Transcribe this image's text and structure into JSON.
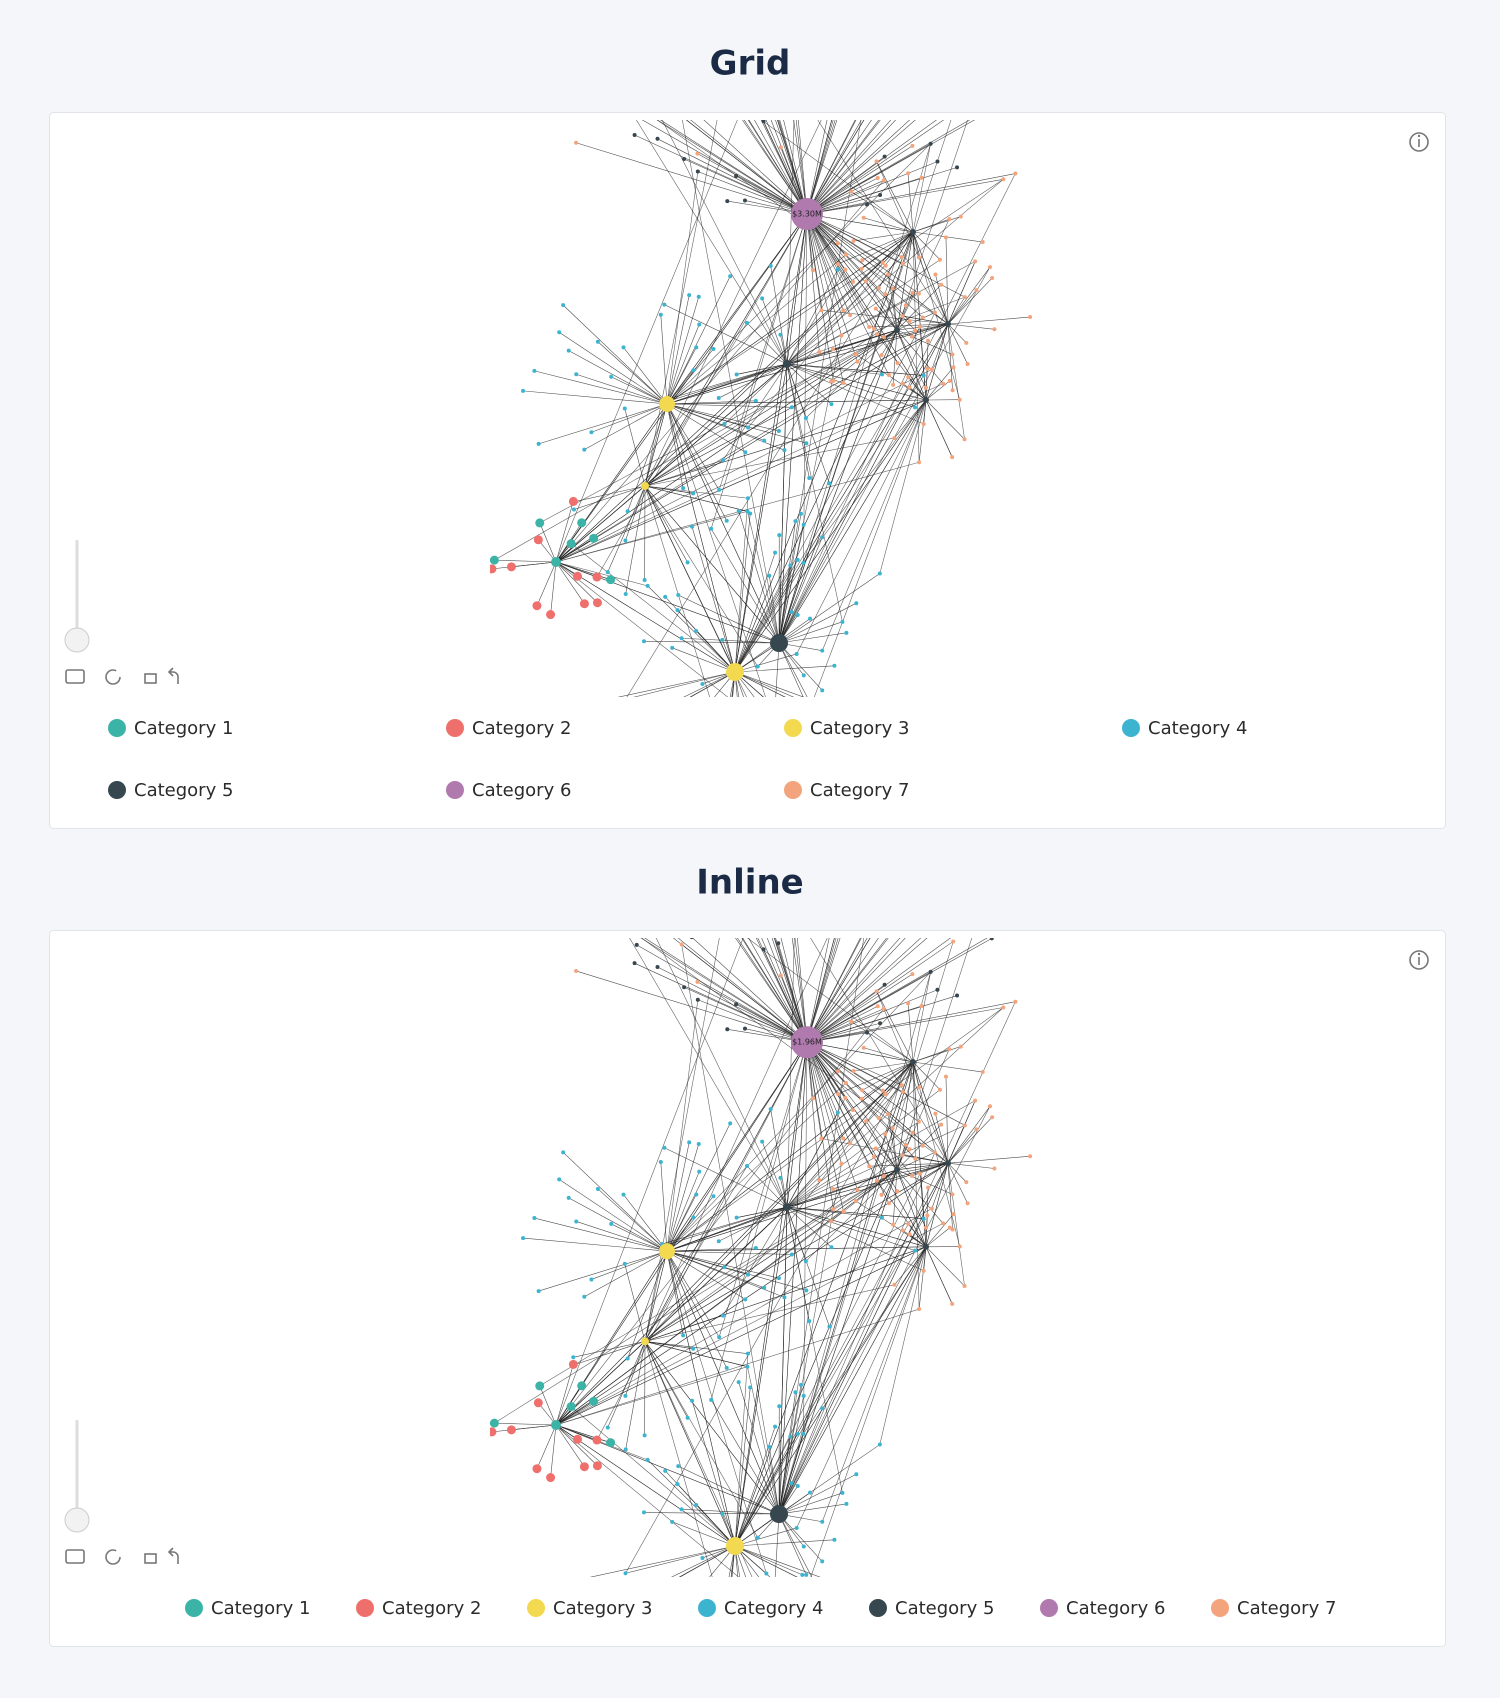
{
  "sections": [
    {
      "title": "Grid",
      "hub_label": "$3.30M",
      "legend_layout": "grid",
      "legend": [
        {
          "name": "Category 1",
          "color": "#3bb3a6"
        },
        {
          "name": "Category 2",
          "color": "#ef6f6c"
        },
        {
          "name": "Category 3",
          "color": "#f3d94f"
        },
        {
          "name": "Category 4",
          "color": "#3cb4d0"
        },
        {
          "name": "Category 5",
          "color": "#37474f"
        },
        {
          "name": "Category 6",
          "color": "#b07aaf"
        },
        {
          "name": "Category 7",
          "color": "#f4a47c"
        }
      ]
    },
    {
      "title": "Inline",
      "hub_label": "$1.96M",
      "legend_layout": "inline",
      "legend": [
        {
          "name": "Category 1",
          "color": "#3bb3a6"
        },
        {
          "name": "Category 2",
          "color": "#ef6f6c"
        },
        {
          "name": "Category 3",
          "color": "#f3d94f"
        },
        {
          "name": "Category 4",
          "color": "#3cb4d0"
        },
        {
          "name": "Category 5",
          "color": "#37474f"
        },
        {
          "name": "Category 6",
          "color": "#b07aaf"
        },
        {
          "name": "Category 7",
          "color": "#f4a47c"
        }
      ]
    }
  ]
}
